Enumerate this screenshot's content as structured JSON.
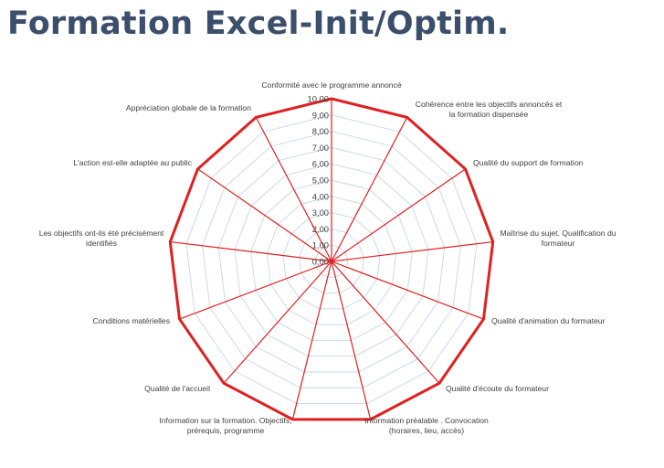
{
  "page": {
    "title": "Formation Excel-Init/Optim."
  },
  "chart_data": {
    "type": "radar",
    "title": "",
    "categories": [
      "Conformité avec le programme annoncé",
      "Cohérence entre les objectifs annoncés et la formation dispensée",
      "Qualité du support de formation",
      "Maîtrise du sujet. Qualification du formateur",
      "Qualité d'animation du formateur",
      "Qualité d'écoute du formateur",
      "Information préalable . Convocation (horaires, lieu, accès)",
      "Information sur la formation. Objectifs, prérequis, programme",
      "Qualité de l'accueil",
      "Conditions matérielles",
      "Les objectifs ont-ils été précisément identifiés",
      "L'action est-elle adaptée au public",
      "Appréciation globale de la formation"
    ],
    "series": [
      {
        "values": [
          10,
          10,
          10,
          10,
          10,
          10,
          10,
          10,
          10,
          10,
          10,
          10,
          10
        ]
      }
    ],
    "rlim": [
      0,
      10
    ],
    "tick_labels": [
      "0,00",
      "1,00",
      "2,00",
      "3,00",
      "4,00",
      "5,00",
      "6,00",
      "7,00",
      "8,00",
      "9,00",
      "10,00"
    ],
    "grid": true,
    "legend": "none",
    "colors": {
      "series": "#e02020",
      "grid": "#c9d9ec",
      "text": "#404040",
      "title": "#3b4e6b"
    }
  }
}
